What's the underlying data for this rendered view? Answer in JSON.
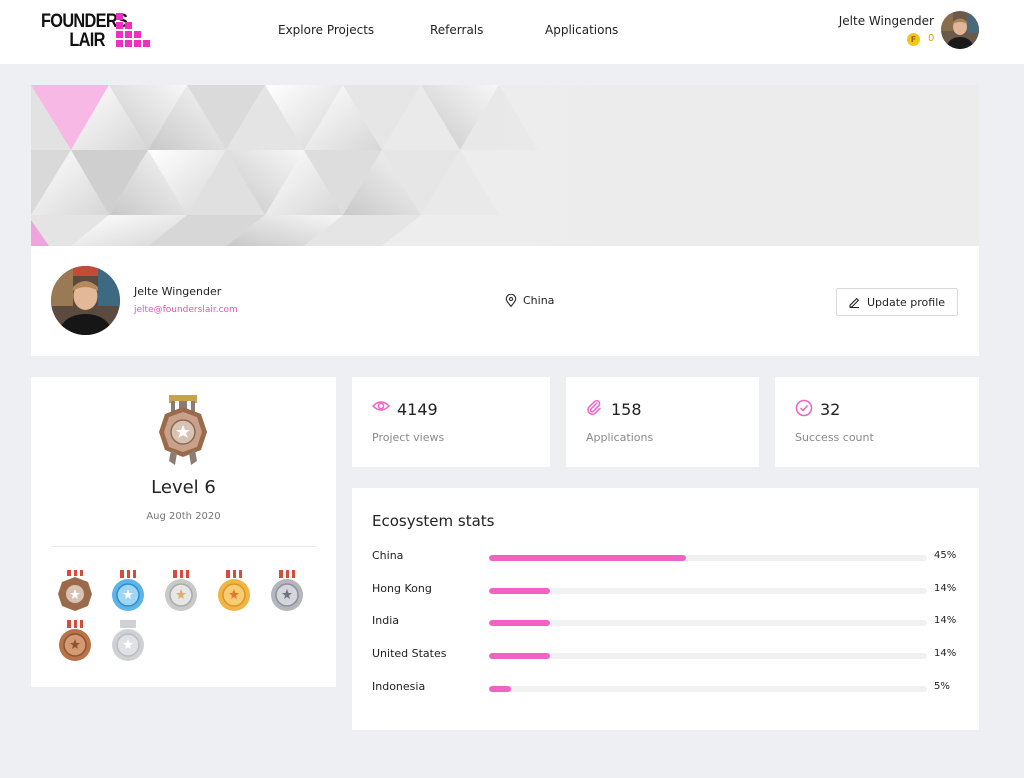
{
  "header": {
    "logo": {
      "line1": "FOUNDERS",
      "line2": "LAIR"
    },
    "nav": [
      {
        "label": "Explore Projects"
      },
      {
        "label": "Referrals"
      },
      {
        "label": "Applications"
      }
    ],
    "user": {
      "name": "Jelte Wingender",
      "coin_symbol": "F",
      "coins": "0"
    }
  },
  "profile": {
    "name": "Jelte Wingender",
    "email": "jelte@founderslair.com",
    "location": "China",
    "update_button": "Update profile"
  },
  "level": {
    "title": "Level 6",
    "date": "Aug 20th 2020",
    "badges": [
      "bronze-star-badge",
      "blue-badge",
      "silver-badge",
      "gold-badge",
      "grey-badge",
      "copper-badge",
      "locked-badge"
    ]
  },
  "stats": [
    {
      "value": "4149",
      "label": "Project views",
      "icon": "eye-icon"
    },
    {
      "value": "158",
      "label": "Applications",
      "icon": "paperclip-icon"
    },
    {
      "value": "32",
      "label": "Success count",
      "icon": "check-circle-icon"
    }
  ],
  "ecosystem": {
    "title": "Ecosystem stats",
    "rows": [
      {
        "country": "China",
        "percent": 45,
        "label": "45%"
      },
      {
        "country": "Hong Kong",
        "percent": 14,
        "label": "14%"
      },
      {
        "country": "India",
        "percent": 14,
        "label": "14%"
      },
      {
        "country": "United States",
        "percent": 14,
        "label": "14%"
      },
      {
        "country": "Indonesia",
        "percent": 5,
        "label": "5%"
      }
    ]
  },
  "colors": {
    "accent": "#f062c3",
    "email": "#e455b9",
    "coin": "#f5c518",
    "background": "#eeeff3"
  }
}
